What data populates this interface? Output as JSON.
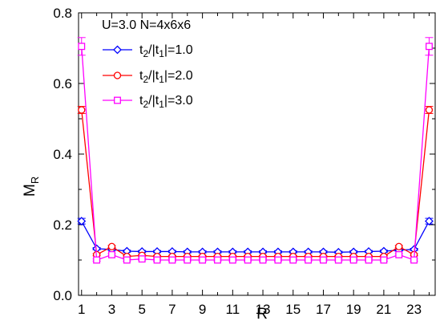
{
  "chart_data": {
    "type": "line",
    "title": "",
    "annotation": "U=3.0 N=4x6x6",
    "xlabel": "R",
    "ylabel": {
      "base": "M",
      "sub": "R"
    },
    "xlim": [
      0.8,
      24.4
    ],
    "ylim": [
      0.0,
      0.8
    ],
    "xticks_labeled": [
      1,
      3,
      5,
      7,
      9,
      11,
      13,
      15,
      17,
      19,
      21,
      23
    ],
    "xticks_minor": [
      2,
      4,
      6,
      8,
      10,
      12,
      14,
      16,
      18,
      20,
      22,
      24
    ],
    "yticks_labeled": [
      0.0,
      0.2,
      0.4,
      0.6,
      0.8
    ],
    "ytick_labels": [
      "0.0",
      "0.2",
      "0.4",
      "0.6",
      "0.8"
    ],
    "grid": false,
    "legend_placement": "top-left",
    "x": [
      1,
      2,
      3,
      4,
      5,
      6,
      7,
      8,
      9,
      10,
      11,
      12,
      13,
      14,
      15,
      16,
      17,
      18,
      19,
      20,
      21,
      22,
      23,
      24
    ],
    "series": [
      {
        "name": {
          "p1": "t",
          "s1": "2",
          "p2": "/|t",
          "s2": "1",
          "p3": "|=1.0"
        },
        "color": "#0000ff",
        "marker": "diamond",
        "values": [
          0.21,
          0.132,
          0.13,
          0.125,
          0.124,
          0.124,
          0.124,
          0.123,
          0.123,
          0.123,
          0.123,
          0.123,
          0.123,
          0.123,
          0.123,
          0.123,
          0.123,
          0.122,
          0.123,
          0.124,
          0.125,
          0.128,
          0.13,
          0.21
        ],
        "errors": [
          0.008,
          0.003,
          0.003,
          0.003,
          0.003,
          0.003,
          0.003,
          0.003,
          0.003,
          0.003,
          0.003,
          0.003,
          0.003,
          0.003,
          0.003,
          0.003,
          0.003,
          0.003,
          0.003,
          0.003,
          0.003,
          0.003,
          0.003,
          0.008
        ]
      },
      {
        "name": {
          "p1": "t",
          "s1": "2",
          "p2": "/|t",
          "s2": "1",
          "p3": "|=2.0"
        },
        "color": "#ff0000",
        "marker": "circle",
        "values": [
          0.525,
          0.115,
          0.138,
          0.11,
          0.113,
          0.11,
          0.11,
          0.11,
          0.11,
          0.11,
          0.11,
          0.11,
          0.11,
          0.11,
          0.11,
          0.11,
          0.11,
          0.11,
          0.11,
          0.11,
          0.11,
          0.138,
          0.115,
          0.525
        ],
        "errors": [
          0.01,
          0.003,
          0.003,
          0.003,
          0.003,
          0.003,
          0.003,
          0.003,
          0.003,
          0.003,
          0.003,
          0.003,
          0.003,
          0.003,
          0.003,
          0.003,
          0.003,
          0.003,
          0.003,
          0.003,
          0.003,
          0.003,
          0.003,
          0.01
        ]
      },
      {
        "name": {
          "p1": "t",
          "s1": "2",
          "p2": "/|t",
          "s2": "1",
          "p3": "|=3.0"
        },
        "color": "#ff00ff",
        "marker": "square",
        "values": [
          0.705,
          0.1,
          0.115,
          0.1,
          0.103,
          0.1,
          0.1,
          0.1,
          0.1,
          0.1,
          0.1,
          0.1,
          0.1,
          0.1,
          0.1,
          0.1,
          0.1,
          0.1,
          0.1,
          0.1,
          0.1,
          0.115,
          0.1,
          0.705
        ],
        "errors": [
          0.025,
          0.003,
          0.003,
          0.003,
          0.003,
          0.003,
          0.003,
          0.003,
          0.003,
          0.003,
          0.003,
          0.003,
          0.003,
          0.003,
          0.003,
          0.003,
          0.003,
          0.003,
          0.003,
          0.003,
          0.003,
          0.003,
          0.003,
          0.025
        ]
      }
    ]
  }
}
